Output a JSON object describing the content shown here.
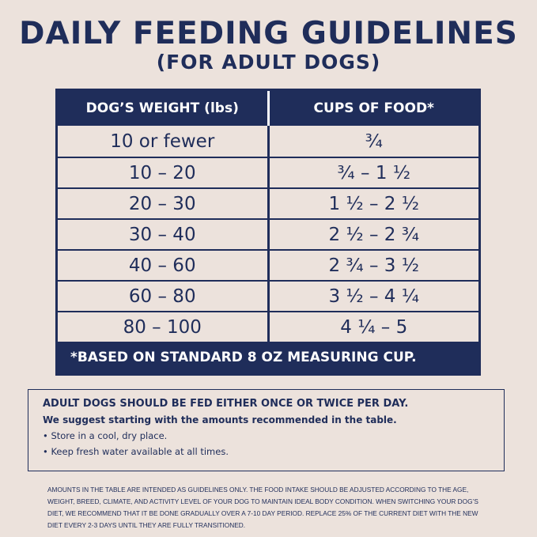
{
  "header": {
    "title": "DAILY FEEDING GUIDELINES",
    "subtitle": "(FOR ADULT DOGS)"
  },
  "table": {
    "columns": [
      "DOG’S WEIGHT (lbs)",
      "CUPS OF FOOD*"
    ],
    "rows": [
      [
        "10 or fewer",
        "¾"
      ],
      [
        "10 – 20",
        "¾ – 1 ½"
      ],
      [
        "20 – 30",
        "1 ½ – 2 ½"
      ],
      [
        "30 – 40",
        "2 ½ – 2 ¾"
      ],
      [
        "40 – 60",
        "2 ¾ – 3 ½"
      ],
      [
        "60 – 80",
        "3 ½ – 4 ¼"
      ],
      [
        "80 – 100",
        "4 ¼ – 5"
      ]
    ],
    "footnote": "*BASED ON STANDARD 8 OZ MEASURING CUP."
  },
  "notes": {
    "heading": "ADULT DOGS SHOULD BE FED EITHER ONCE OR TWICE PER DAY.",
    "subheading": "We suggest starting with the amounts recommended in the table.",
    "bullets": [
      "Store in a cool, dry place.",
      "Keep fresh water available at all times."
    ]
  },
  "disclaimer": "AMOUNTS IN THE TABLE ARE INTENDED AS GUIDELINES ONLY. THE FOOD INTAKE SHOULD BE ADJUSTED ACCORDING TO THE AGE, WEIGHT, BREED, CLIMATE, AND ACTIVITY LEVEL OF YOUR DOG TO MAINTAIN IDEAL BODY CONDITION. WHEN SWITCHING YOUR DOG’S DIET, WE RECOMMEND THAT IT BE DONE GRADUALLY OVER A 7-10 DAY PERIOD. REPLACE 25% OF THE CURRENT DIET WITH THE NEW DIET EVERY 2-3 DAYS UNTIL THEY ARE FULLY TRANSITIONED."
}
